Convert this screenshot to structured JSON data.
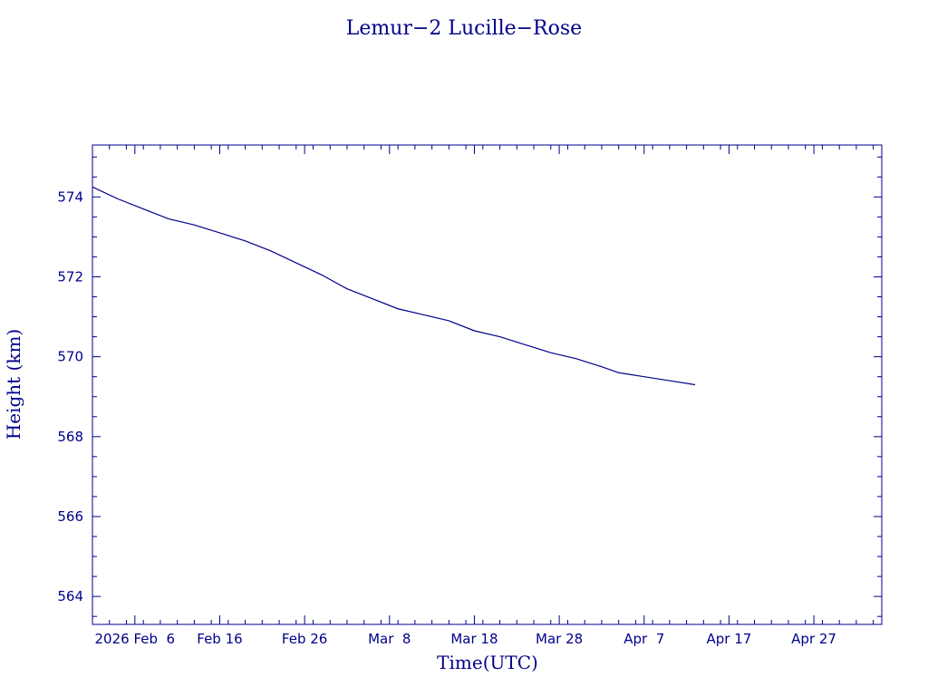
{
  "chart_data": {
    "type": "line",
    "title": "Lemur−2 Lucille−Rose",
    "xlabel": "Time(UTC)",
    "ylabel": "Height (km)",
    "color": "#00008b",
    "x_range": [
      "2026-02-01",
      "2026-05-05"
    ],
    "ylim": [
      563.3,
      575.3
    ],
    "y_ticks": [
      564,
      566,
      568,
      570,
      572,
      574
    ],
    "x_ticks": [
      {
        "date": "2026-02-06",
        "label": "2026 Feb  6"
      },
      {
        "date": "2026-02-16",
        "label": "Feb 16"
      },
      {
        "date": "2026-02-26",
        "label": "Feb 26"
      },
      {
        "date": "2026-03-08",
        "label": "Mar  8"
      },
      {
        "date": "2026-03-18",
        "label": "Mar 18"
      },
      {
        "date": "2026-03-28",
        "label": "Mar 28"
      },
      {
        "date": "2026-04-07",
        "label": "Apr  7"
      },
      {
        "date": "2026-04-17",
        "label": "Apr 17"
      },
      {
        "date": "2026-04-27",
        "label": "Apr 27"
      }
    ],
    "grid": false,
    "series": [
      {
        "x": [
          "2026-02-01",
          "2026-02-04",
          "2026-02-07",
          "2026-02-10",
          "2026-02-13",
          "2026-02-16",
          "2026-02-19",
          "2026-02-22",
          "2026-02-25",
          "2026-02-28",
          "2026-03-03",
          "2026-03-06",
          "2026-03-09",
          "2026-03-12",
          "2026-03-15",
          "2026-03-18",
          "2026-03-21",
          "2026-03-24",
          "2026-03-27",
          "2026-03-30",
          "2026-04-02",
          "2026-04-04",
          "2026-04-07",
          "2026-04-10",
          "2026-04-13"
        ],
        "y": [
          574.25,
          573.95,
          573.7,
          573.45,
          573.3,
          573.1,
          572.9,
          572.65,
          572.35,
          572.05,
          571.7,
          571.45,
          571.2,
          571.05,
          570.9,
          570.65,
          570.5,
          570.3,
          570.1,
          569.95,
          569.75,
          569.6,
          569.5,
          569.4,
          569.3
        ]
      }
    ]
  }
}
